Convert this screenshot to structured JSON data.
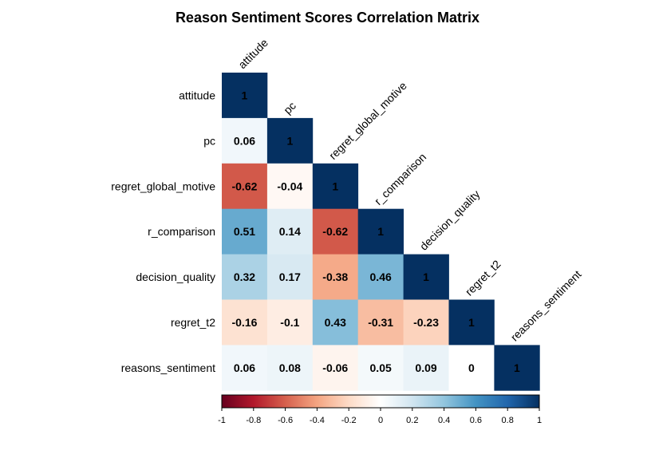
{
  "chart_data": {
    "type": "heatmap",
    "title": "Reason Sentiment Scores Correlation Matrix",
    "variables": [
      "attitude",
      "pc",
      "regret_global_motive",
      "r_comparison",
      "decision_quality",
      "regret_t2",
      "reasons_sentiment"
    ],
    "matrix": [
      [
        1
      ],
      [
        0.06,
        1
      ],
      [
        -0.62,
        -0.04,
        1
      ],
      [
        0.51,
        0.14,
        -0.62,
        1
      ],
      [
        0.32,
        0.17,
        -0.38,
        0.46,
        1
      ],
      [
        -0.16,
        -0.1,
        0.43,
        -0.31,
        -0.23,
        1
      ],
      [
        0.06,
        0.08,
        -0.06,
        0.05,
        0.09,
        0,
        1
      ]
    ],
    "labels": [
      [
        "1"
      ],
      [
        "0.06",
        "1"
      ],
      [
        "-0.62",
        "-0.04",
        "1"
      ],
      [
        "0.51",
        "0.14",
        "-0.62",
        "1"
      ],
      [
        "0.32",
        "0.17",
        "-0.38",
        "0.46",
        "1"
      ],
      [
        "-0.16",
        "-0.1",
        "0.43",
        "-0.31",
        "-0.23",
        "1"
      ],
      [
        "0.06",
        "0.08",
        "-0.06",
        "0.05",
        "0.09",
        "0",
        "1"
      ]
    ],
    "colorbar": {
      "range": [
        -1,
        1
      ],
      "ticks": [
        "-1",
        "-0.8",
        "-0.6",
        "-0.4",
        "-0.2",
        "0",
        "0.2",
        "0.4",
        "0.6",
        "0.8",
        "1"
      ],
      "colors": [
        "#67001f",
        "#b2182b",
        "#d6604d",
        "#f4a582",
        "#fddbc7",
        "#ffffff",
        "#d1e5f0",
        "#92c5de",
        "#4393c3",
        "#2166ac",
        "#053061"
      ],
      "placement": "bottom"
    },
    "layout": "lower-triangle"
  }
}
